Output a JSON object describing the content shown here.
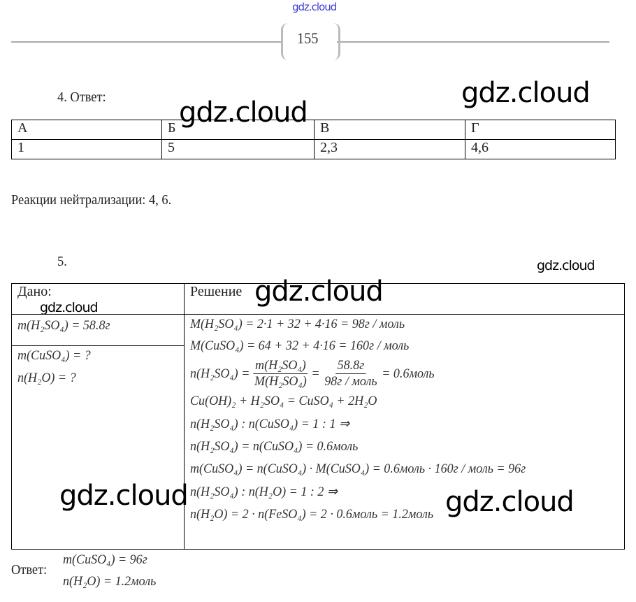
{
  "header": {
    "watermark": "gdz.cloud",
    "page_number": "155"
  },
  "watermarks": [
    "gdz.cloud",
    "gdz.cloud",
    "gdz.cloud",
    "gdz.cloud",
    "gdz.cloud",
    "gdz.cloud",
    "gdz.cloud"
  ],
  "task4": {
    "label": "4.  Ответ:",
    "table": {
      "headers": [
        "А",
        "Б",
        "В",
        "Г"
      ],
      "values": [
        "1",
        "5",
        "2,3",
        "4,6"
      ]
    },
    "note": "Реакции нейтрализации: 4, 6."
  },
  "task5": {
    "label": "5.",
    "given_header": "Дано:",
    "solution_header": "Решение",
    "given": [
      "m(H₂SO₄) = 58.8г"
    ],
    "find": [
      "m(CuSO₄) = ?",
      "n(H₂O) = ?"
    ],
    "solution": {
      "line1": "M(H₂SO₄) = 2·1 + 32 + 4·16 = 98г / моль",
      "line2": "M(CuSO₄) = 64 + 32 + 4·16 = 160г / моль",
      "line3_lhs": "n(H₂SO₄) =",
      "line3_num1": "m(H₂SO₄)",
      "line3_den1": "M(H₂SO₄)",
      "line3_eq": "=",
      "line3_num2": "58.8г",
      "line3_den2": "98г / моль",
      "line3_rhs": "= 0.6моль",
      "line4": "Cu(OH)₂ + H₂SO₄ = CuSO₄ + 2H₂O",
      "line5": "n(H₂SO₄) : n(CuSO₄) = 1 : 1 ⇒",
      "line6": "n(H₂SO₄) = n(CuSO₄) = 0.6моль",
      "line7": "m(CuSO₄) = n(CuSO₄) · M(CuSO₄) = 0.6моль · 160г / моль = 96г",
      "line8": "n(H₂SO₄) : n(H₂O) = 1 : 2 ⇒",
      "line9": "n(H₂O) = 2 · n(FeSO₄) = 2 · 0.6моль = 1.2моль"
    },
    "answer_label": "Ответ:",
    "answer": [
      "m(CuSO₄) = 96г",
      "n(H₂O) = 1.2моль"
    ]
  }
}
